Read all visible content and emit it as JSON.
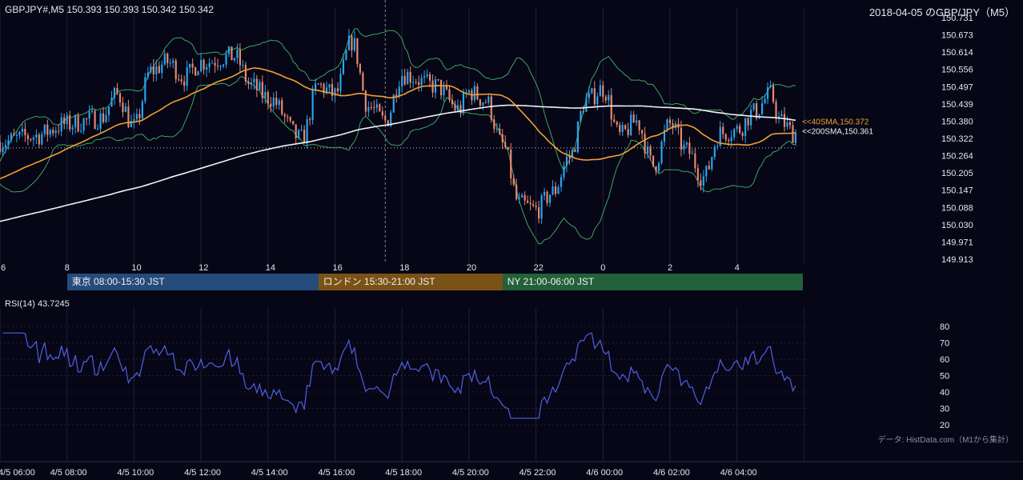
{
  "header": {
    "symbol_info": "GBPJPY#,M5 150.393 150.393 150.342 150.342",
    "title": "2018-04-05 のGBP/JPY（M5）"
  },
  "sessions": [
    {
      "label": "東京 08:00-15:30 JST",
      "color": "#254b7a",
      "from": 8.0,
      "to": 15.5
    },
    {
      "label": "ロンドン 15:30-21:00 JST",
      "color": "#7a5216",
      "from": 15.5,
      "to": 21.0
    },
    {
      "label": "NY 21:00-06:00 JST",
      "color": "#22613a",
      "from": 21.0,
      "to": 30.0
    }
  ],
  "rsi": {
    "label": "RSI(14) 43.7245"
  },
  "source_note": "データ: HistData.com（M1から集計）",
  "colors": {
    "background": "#060617",
    "up": "#2aa6f0",
    "down": "#e88a70",
    "sma40": "#f0a030",
    "sma200": "#f2f2f2",
    "bands": "#3fa45b",
    "rsi": "#5060e0"
  },
  "chart_data": [
    {
      "type": "candlestick",
      "x_start_hour": 6.0,
      "x_end_hour": 30.0,
      "bar_interval_minutes": 5,
      "ylim": [
        149.913,
        150.731
      ],
      "y_ticks": [
        "150.731",
        "150.673",
        "150.614",
        "150.556",
        "150.497",
        "150.439",
        "150.380",
        "150.322",
        "150.264",
        "150.205",
        "150.147",
        "150.088",
        "150.030",
        "149.971",
        "149.913"
      ],
      "x_ticks": [
        "6",
        "8",
        "10",
        "12",
        "14",
        "16",
        "18",
        "20",
        "22",
        "0",
        "2",
        "4"
      ],
      "close_anchors": [
        [
          6.0,
          150.31
        ],
        [
          7.0,
          150.33
        ],
        [
          8.0,
          150.37
        ],
        [
          9.0,
          150.39
        ],
        [
          9.5,
          150.47
        ],
        [
          10.0,
          150.36
        ],
        [
          10.5,
          150.55
        ],
        [
          11.0,
          150.58
        ],
        [
          11.5,
          150.53
        ],
        [
          12.0,
          150.58
        ],
        [
          13.0,
          150.6
        ],
        [
          13.5,
          150.5
        ],
        [
          14.0,
          150.46
        ],
        [
          15.0,
          150.32
        ],
        [
          15.5,
          150.5
        ],
        [
          16.0,
          150.47
        ],
        [
          16.5,
          150.65
        ],
        [
          17.0,
          150.43
        ],
        [
          17.5,
          150.38
        ],
        [
          18.0,
          150.54
        ],
        [
          19.0,
          150.5
        ],
        [
          19.7,
          150.42
        ],
        [
          20.0,
          150.48
        ],
        [
          20.5,
          150.45
        ],
        [
          21.0,
          150.3
        ],
        [
          21.5,
          150.1
        ],
        [
          22.0,
          150.08
        ],
        [
          22.5,
          150.14
        ],
        [
          23.0,
          150.26
        ],
        [
          23.5,
          150.45
        ],
        [
          24.0,
          150.49
        ],
        [
          24.5,
          150.33
        ],
        [
          25.0,
          150.38
        ],
        [
          25.5,
          150.23
        ],
        [
          26.0,
          150.37
        ],
        [
          26.5,
          150.28
        ],
        [
          27.0,
          150.19
        ],
        [
          27.5,
          150.34
        ],
        [
          28.0,
          150.35
        ],
        [
          28.5,
          150.41
        ],
        [
          29.0,
          150.47
        ],
        [
          29.3,
          150.38
        ],
        [
          29.7,
          150.34
        ]
      ],
      "last_price": 150.342,
      "dotted_level": 150.29,
      "dashed_time_hour": 17.5,
      "indicators": [
        {
          "name": "40SMA",
          "label": "<<40SMA,150.372",
          "value": 150.372
        },
        {
          "name": "200SMA",
          "label": "<<200SMA,150.361",
          "value": 150.361
        },
        {
          "name": "Bollinger Bands"
        }
      ]
    },
    {
      "type": "line",
      "series": [
        {
          "name": "RSI(14)",
          "last": 43.7245
        }
      ],
      "ylim": [
        20,
        80
      ],
      "y_ticks": [
        "80",
        "70",
        "60",
        "50",
        "40",
        "30",
        "20"
      ],
      "x_ticks": [
        "4/5 06:00",
        "4/5 08:00",
        "4/5 10:00",
        "4/5 12:00",
        "4/5 14:00",
        "4/5 16:00",
        "4/5 18:00",
        "4/5 20:00",
        "4/5 22:00",
        "4/6 00:00",
        "4/6 02:00",
        "4/6 04:00"
      ]
    }
  ]
}
